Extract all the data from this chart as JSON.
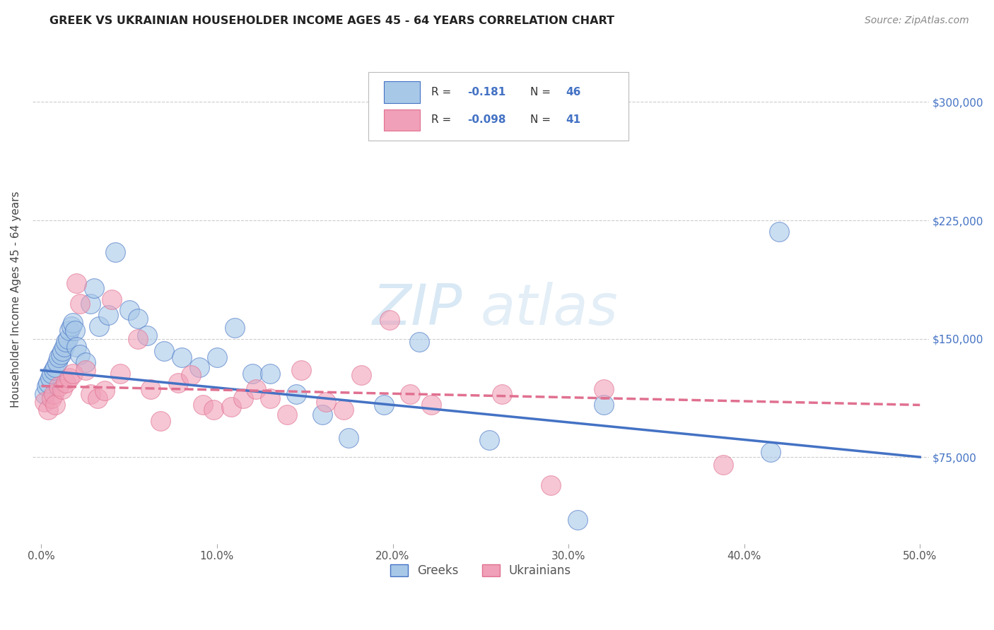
{
  "title": "GREEK VS UKRAINIAN HOUSEHOLDER INCOME AGES 45 - 64 YEARS CORRELATION CHART",
  "source": "Source: ZipAtlas.com",
  "xlabel_ticks": [
    "0.0%",
    "10.0%",
    "20.0%",
    "30.0%",
    "40.0%",
    "50.0%"
  ],
  "xlabel_vals": [
    0.0,
    0.1,
    0.2,
    0.3,
    0.4,
    0.5
  ],
  "ylabel_ticks": [
    "$75,000",
    "$150,000",
    "$225,000",
    "$300,000"
  ],
  "ylabel_vals": [
    75000,
    150000,
    225000,
    300000
  ],
  "ylabel_label": "Householder Income Ages 45 - 64 years",
  "ylim": [
    20000,
    330000
  ],
  "xlim": [
    -0.005,
    0.505
  ],
  "watermark_zip": "ZIP",
  "watermark_atlas": "atlas",
  "legend_greek_r": "-0.181",
  "legend_greek_n": "46",
  "legend_ukr_r": "-0.098",
  "legend_ukr_n": "41",
  "greek_color": "#a8c8e8",
  "ukr_color": "#f0a0b8",
  "greek_line_color": "#4472c4",
  "ukr_line_color": "#e07090",
  "greek_scatter_x": [
    0.002,
    0.003,
    0.004,
    0.005,
    0.006,
    0.007,
    0.008,
    0.009,
    0.01,
    0.011,
    0.012,
    0.013,
    0.014,
    0.015,
    0.016,
    0.017,
    0.018,
    0.019,
    0.02,
    0.022,
    0.025,
    0.028,
    0.03,
    0.033,
    0.038,
    0.042,
    0.05,
    0.055,
    0.06,
    0.07,
    0.08,
    0.09,
    0.1,
    0.11,
    0.12,
    0.13,
    0.145,
    0.16,
    0.175,
    0.195,
    0.215,
    0.255,
    0.305,
    0.32,
    0.415,
    0.42
  ],
  "greek_scatter_y": [
    115000,
    120000,
    122000,
    125000,
    128000,
    130000,
    132000,
    135000,
    138000,
    140000,
    142000,
    145000,
    148000,
    150000,
    155000,
    158000,
    160000,
    155000,
    145000,
    140000,
    135000,
    172000,
    182000,
    158000,
    165000,
    205000,
    168000,
    163000,
    152000,
    142000,
    138000,
    132000,
    138000,
    157000,
    128000,
    128000,
    115000,
    102000,
    87000,
    108000,
    148000,
    86000,
    35000,
    108000,
    78000,
    218000
  ],
  "ukr_scatter_x": [
    0.002,
    0.004,
    0.006,
    0.007,
    0.008,
    0.01,
    0.012,
    0.014,
    0.016,
    0.018,
    0.02,
    0.022,
    0.025,
    0.028,
    0.032,
    0.036,
    0.04,
    0.045,
    0.055,
    0.062,
    0.068,
    0.078,
    0.085,
    0.092,
    0.098,
    0.108,
    0.115,
    0.122,
    0.13,
    0.14,
    0.148,
    0.162,
    0.172,
    0.182,
    0.198,
    0.21,
    0.222,
    0.262,
    0.29,
    0.32,
    0.388
  ],
  "ukr_scatter_y": [
    110000,
    105000,
    112000,
    115000,
    108000,
    120000,
    118000,
    122000,
    125000,
    128000,
    185000,
    172000,
    130000,
    115000,
    112000,
    117000,
    175000,
    128000,
    150000,
    118000,
    98000,
    122000,
    127000,
    108000,
    105000,
    107000,
    112000,
    118000,
    112000,
    102000,
    130000,
    110000,
    105000,
    127000,
    162000,
    115000,
    108000,
    115000,
    57000,
    118000,
    70000
  ],
  "background_color": "#ffffff",
  "grid_color": "#cccccc"
}
